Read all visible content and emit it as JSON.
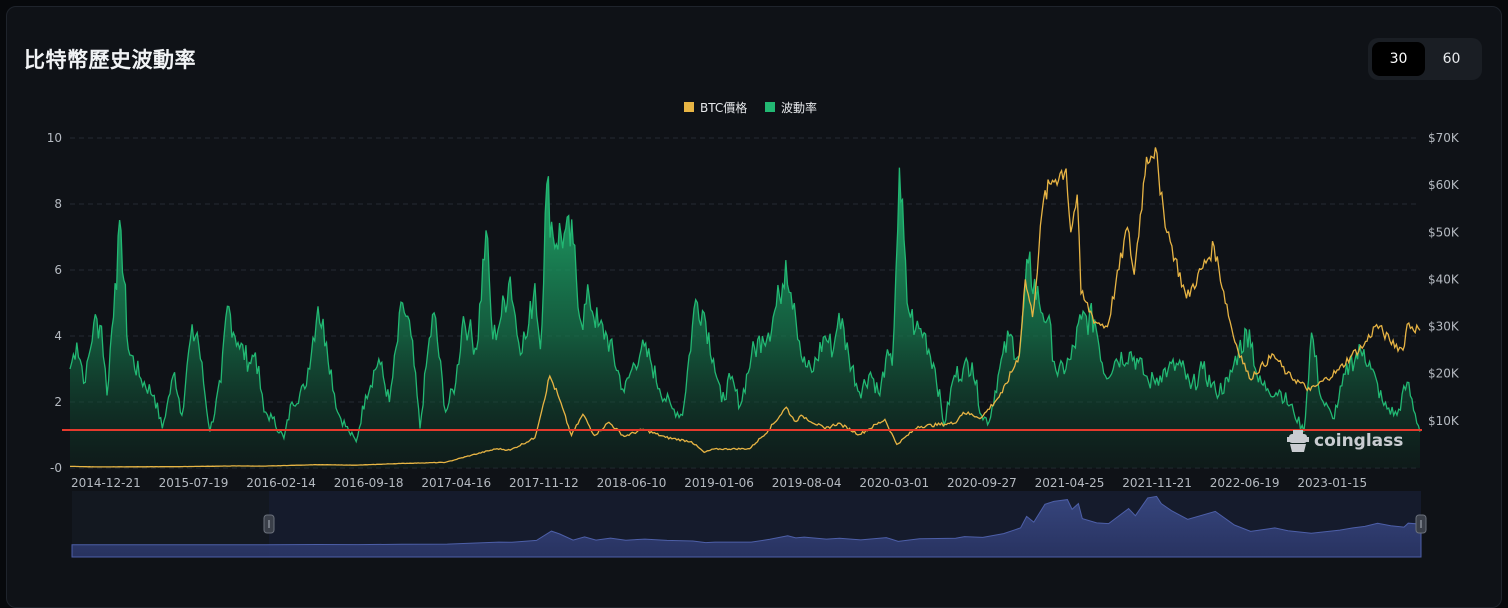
{
  "header": {
    "title": "比特幣歷史波動率",
    "periods": [
      "30",
      "60"
    ],
    "active_period": "30"
  },
  "watermark": "coinglass",
  "colors": {
    "price": "#e7b444",
    "volatility": "#22b873",
    "threshold": "#e53a2d",
    "navigator": "#3a4a86"
  },
  "chart_data": {
    "type": "area",
    "title": "",
    "legend": [
      "BTC價格",
      "波動率"
    ],
    "legend_position": "top-center",
    "grid": true,
    "x_labels": [
      "2014-12-21",
      "2015-07-19",
      "2016-02-14",
      "2016-09-18",
      "2017-04-16",
      "2017-11-12",
      "2018-06-10",
      "2019-01-06",
      "2019-08-04",
      "2020-03-01",
      "2020-09-27",
      "2021-04-25",
      "2021-11-21",
      "2022-06-19",
      "2023-01-15"
    ],
    "x_range": [
      "2014-11-15",
      "2023-07-25"
    ],
    "y_left": {
      "range": [
        0,
        10
      ],
      "ticks": [
        10,
        8,
        6,
        4,
        2,
        0
      ],
      "tick_labels": [
        "10",
        "8",
        "6",
        "4",
        "2",
        "-0"
      ]
    },
    "y_right": {
      "range": [
        0,
        70000
      ],
      "ticks": [
        70000,
        60000,
        50000,
        40000,
        30000,
        20000,
        10000
      ],
      "tick_labels": [
        "$70K",
        "$60K",
        "$50K",
        "$40K",
        "$30K",
        "$20K",
        "$10K"
      ]
    },
    "threshold_line": {
      "axis": "left",
      "value": 1.15
    },
    "series": [
      {
        "name": "波動率",
        "axis": "left",
        "points": [
          [
            "2014-11-15",
            3.0
          ],
          [
            "2014-12-01",
            3.8
          ],
          [
            "2014-12-21",
            2.6
          ],
          [
            "2015-01-10",
            4.4
          ],
          [
            "2015-01-28",
            4.3
          ],
          [
            "2015-02-10",
            2.2
          ],
          [
            "2015-03-01",
            5.6
          ],
          [
            "2015-03-15",
            7.2
          ],
          [
            "2015-04-01",
            3.6
          ],
          [
            "2015-05-01",
            2.7
          ],
          [
            "2015-06-01",
            2.2
          ],
          [
            "2015-06-20",
            1.2
          ],
          [
            "2015-07-01",
            1.9
          ],
          [
            "2015-07-19",
            2.9
          ],
          [
            "2015-08-05",
            1.6
          ],
          [
            "2015-08-25",
            3.9
          ],
          [
            "2015-09-10",
            4.1
          ],
          [
            "2015-10-10",
            1.1
          ],
          [
            "2015-11-05",
            2.6
          ],
          [
            "2015-11-20",
            4.9
          ],
          [
            "2015-12-15",
            3.8
          ],
          [
            "2016-01-10",
            3.2
          ],
          [
            "2016-01-25",
            3.5
          ],
          [
            "2016-02-14",
            1.7
          ],
          [
            "2016-03-05",
            1.5
          ],
          [
            "2016-04-01",
            0.9
          ],
          [
            "2016-04-20",
            2.0
          ],
          [
            "2016-05-20",
            2.4
          ],
          [
            "2016-06-20",
            4.9
          ],
          [
            "2016-07-10",
            3.8
          ],
          [
            "2016-08-05",
            1.7
          ],
          [
            "2016-09-01",
            1.1
          ],
          [
            "2016-09-18",
            0.8
          ],
          [
            "2016-10-10",
            2.2
          ],
          [
            "2016-11-10",
            3.3
          ],
          [
            "2016-12-05",
            2.0
          ],
          [
            "2017-01-05",
            5.0
          ],
          [
            "2017-01-25",
            4.0
          ],
          [
            "2017-02-15",
            1.2
          ],
          [
            "2017-03-05",
            3.5
          ],
          [
            "2017-03-20",
            4.7
          ],
          [
            "2017-04-16",
            1.7
          ],
          [
            "2017-05-10",
            2.6
          ],
          [
            "2017-05-28",
            4.6
          ],
          [
            "2017-06-10",
            4.2
          ],
          [
            "2017-06-28",
            3.6
          ],
          [
            "2017-07-20",
            7.2
          ],
          [
            "2017-08-05",
            3.9
          ],
          [
            "2017-08-25",
            4.6
          ],
          [
            "2017-09-15",
            5.8
          ],
          [
            "2017-10-05",
            3.8
          ],
          [
            "2017-10-25",
            4.0
          ],
          [
            "2017-11-12",
            5.6
          ],
          [
            "2017-11-25",
            3.6
          ],
          [
            "2017-12-10",
            8.6
          ],
          [
            "2017-12-25",
            7.0
          ],
          [
            "2018-01-20",
            7.1
          ],
          [
            "2018-02-10",
            6.8
          ],
          [
            "2018-03-01",
            4.4
          ],
          [
            "2018-03-20",
            5.2
          ],
          [
            "2018-04-10",
            4.3
          ],
          [
            "2018-05-01",
            4.0
          ],
          [
            "2018-06-10",
            2.3
          ],
          [
            "2018-06-28",
            3.0
          ],
          [
            "2018-07-20",
            3.6
          ],
          [
            "2018-08-10",
            3.3
          ],
          [
            "2018-09-01",
            2.4
          ],
          [
            "2018-10-01",
            1.8
          ],
          [
            "2018-10-25",
            1.6
          ],
          [
            "2018-11-25",
            5.1
          ],
          [
            "2018-12-15",
            4.7
          ],
          [
            "2019-01-06",
            3.3
          ],
          [
            "2019-01-25",
            2.0
          ],
          [
            "2019-02-15",
            2.7
          ],
          [
            "2019-03-10",
            1.9
          ],
          [
            "2019-04-05",
            3.4
          ],
          [
            "2019-05-01",
            4.0
          ],
          [
            "2019-05-15",
            4.1
          ],
          [
            "2019-06-10",
            5.2
          ],
          [
            "2019-06-25",
            6.3
          ],
          [
            "2019-07-15",
            5.0
          ],
          [
            "2019-08-04",
            3.2
          ],
          [
            "2019-08-25",
            2.9
          ],
          [
            "2019-09-25",
            4.0
          ],
          [
            "2019-10-15",
            3.6
          ],
          [
            "2019-10-28",
            4.7
          ],
          [
            "2019-11-20",
            3.4
          ],
          [
            "2019-12-15",
            2.3
          ],
          [
            "2020-01-10",
            2.9
          ],
          [
            "2020-02-01",
            2.2
          ],
          [
            "2020-02-15",
            3.3
          ],
          [
            "2020-03-01",
            3.1
          ],
          [
            "2020-03-10",
            6.0
          ],
          [
            "2020-03-18",
            9.1
          ],
          [
            "2020-04-05",
            5.0
          ],
          [
            "2020-04-25",
            4.2
          ],
          [
            "2020-05-15",
            4.1
          ],
          [
            "2020-06-10",
            3.0
          ],
          [
            "2020-07-01",
            1.3
          ],
          [
            "2020-07-25",
            2.8
          ],
          [
            "2020-08-15",
            3.0
          ],
          [
            "2020-09-05",
            3.2
          ],
          [
            "2020-09-27",
            1.6
          ],
          [
            "2020-10-15",
            1.4
          ],
          [
            "2020-11-05",
            2.8
          ],
          [
            "2020-12-01",
            4.0
          ],
          [
            "2020-12-25",
            3.4
          ],
          [
            "2021-01-15",
            6.2
          ],
          [
            "2021-02-10",
            5.0
          ],
          [
            "2021-03-01",
            4.5
          ],
          [
            "2021-03-25",
            2.8
          ],
          [
            "2021-04-25",
            3.3
          ],
          [
            "2021-05-20",
            4.5
          ],
          [
            "2021-06-20",
            4.5
          ],
          [
            "2021-07-15",
            2.8
          ],
          [
            "2021-08-10",
            3.3
          ],
          [
            "2021-09-10",
            3.5
          ],
          [
            "2021-10-01",
            3.2
          ],
          [
            "2021-10-25",
            2.6
          ],
          [
            "2021-11-21",
            2.8
          ],
          [
            "2021-12-10",
            3.0
          ],
          [
            "2022-01-10",
            3.1
          ],
          [
            "2022-02-01",
            2.4
          ],
          [
            "2022-03-01",
            3.0
          ],
          [
            "2022-04-01",
            2.3
          ],
          [
            "2022-05-01",
            2.6
          ],
          [
            "2022-05-25",
            3.6
          ],
          [
            "2022-06-19",
            4.2
          ],
          [
            "2022-07-10",
            2.6
          ],
          [
            "2022-08-01",
            2.4
          ],
          [
            "2022-09-01",
            2.3
          ],
          [
            "2022-10-01",
            1.7
          ],
          [
            "2022-10-25",
            1.1
          ],
          [
            "2022-11-12",
            4.1
          ],
          [
            "2022-12-05",
            2.1
          ],
          [
            "2023-01-01",
            1.5
          ],
          [
            "2023-01-15",
            2.1
          ],
          [
            "2023-02-10",
            3.2
          ],
          [
            "2023-03-15",
            3.6
          ],
          [
            "2023-04-01",
            3.0
          ],
          [
            "2023-05-01",
            1.9
          ],
          [
            "2023-06-01",
            1.6
          ],
          [
            "2023-06-25",
            2.6
          ],
          [
            "2023-07-25",
            1.1
          ]
        ]
      },
      {
        "name": "BTC價格",
        "axis": "right",
        "points": [
          [
            "2014-11-15",
            350
          ],
          [
            "2015-01-15",
            230
          ],
          [
            "2015-07-19",
            280
          ],
          [
            "2015-12-15",
            440
          ],
          [
            "2016-02-14",
            400
          ],
          [
            "2016-06-15",
            700
          ],
          [
            "2016-09-18",
            600
          ],
          [
            "2016-12-31",
            960
          ],
          [
            "2017-04-16",
            1200
          ],
          [
            "2017-06-15",
            2700
          ],
          [
            "2017-08-15",
            4100
          ],
          [
            "2017-09-15",
            3800
          ],
          [
            "2017-11-12",
            6400
          ],
          [
            "2017-12-17",
            19500
          ],
          [
            "2018-01-05",
            15500
          ],
          [
            "2018-02-06",
            6900
          ],
          [
            "2018-03-05",
            11400
          ],
          [
            "2018-04-01",
            6900
          ],
          [
            "2018-05-05",
            9700
          ],
          [
            "2018-06-10",
            6700
          ],
          [
            "2018-07-25",
            8200
          ],
          [
            "2018-09-15",
            6500
          ],
          [
            "2018-11-15",
            5600
          ],
          [
            "2018-12-15",
            3300
          ],
          [
            "2019-01-06",
            4000
          ],
          [
            "2019-04-01",
            4100
          ],
          [
            "2019-05-15",
            8000
          ],
          [
            "2019-06-26",
            12900
          ],
          [
            "2019-07-15",
            10000
          ],
          [
            "2019-08-04",
            11000
          ],
          [
            "2019-09-25",
            8300
          ],
          [
            "2019-10-26",
            9500
          ],
          [
            "2019-12-15",
            7100
          ],
          [
            "2020-02-13",
            10300
          ],
          [
            "2020-03-12",
            5000
          ],
          [
            "2020-05-01",
            8800
          ],
          [
            "2020-07-25",
            9500
          ],
          [
            "2020-08-15",
            11800
          ],
          [
            "2020-09-27",
            10700
          ],
          [
            "2020-11-15",
            16000
          ],
          [
            "2020-12-25",
            24000
          ],
          [
            "2021-01-08",
            40000
          ],
          [
            "2021-01-25",
            32000
          ],
          [
            "2021-02-20",
            57000
          ],
          [
            "2021-03-13",
            61000
          ],
          [
            "2021-04-14",
            63500
          ],
          [
            "2021-04-25",
            50000
          ],
          [
            "2021-05-10",
            58000
          ],
          [
            "2021-05-19",
            37000
          ],
          [
            "2021-06-22",
            31000
          ],
          [
            "2021-07-20",
            30000
          ],
          [
            "2021-09-05",
            51000
          ],
          [
            "2021-09-21",
            41000
          ],
          [
            "2021-10-20",
            66000
          ],
          [
            "2021-11-10",
            68000
          ],
          [
            "2021-11-21",
            58000
          ],
          [
            "2021-12-15",
            48000
          ],
          [
            "2022-01-22",
            36000
          ],
          [
            "2022-03-28",
            47000
          ],
          [
            "2022-05-12",
            28000
          ],
          [
            "2022-06-19",
            19000
          ],
          [
            "2022-08-15",
            24000
          ],
          [
            "2022-09-15",
            20000
          ],
          [
            "2022-11-09",
            16500
          ],
          [
            "2023-01-15",
            20800
          ],
          [
            "2023-02-15",
            24000
          ],
          [
            "2023-03-15",
            26000
          ],
          [
            "2023-04-14",
            30400
          ],
          [
            "2023-05-15",
            27000
          ],
          [
            "2023-06-15",
            25000
          ],
          [
            "2023-06-25",
            30500
          ],
          [
            "2023-07-25",
            29200
          ]
        ]
      }
    ]
  }
}
